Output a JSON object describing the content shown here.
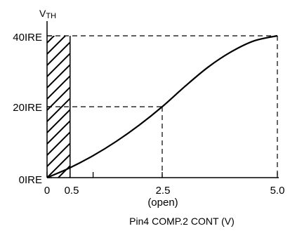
{
  "chart_data": {
    "type": "line",
    "ylabel_main": "V",
    "ylabel_sub": "TH",
    "xlabel": "Pin4 COMP.2 CONT (V)",
    "x_ticks": [
      "0",
      "0.5",
      "2.5",
      "5.0"
    ],
    "x_tick_values": [
      0,
      0.5,
      2.5,
      5.0
    ],
    "x_minor_tick_value": 1.0,
    "x_sublabel": "(open)",
    "y_ticks": [
      "0IRE",
      "20IRE",
      "40IRE"
    ],
    "y_tick_values": [
      0,
      20,
      40
    ],
    "xlim": [
      0,
      5.0
    ],
    "ylim": [
      0,
      40
    ],
    "hatched_region": [
      0,
      0.5
    ],
    "reference_points": [
      {
        "x": 2.5,
        "y": 20
      },
      {
        "x": 5.0,
        "y": 40
      }
    ],
    "series": [
      {
        "x": [
          0,
          0.5,
          1.0,
          1.5,
          2.0,
          2.5,
          3.0,
          3.5,
          4.0,
          4.5,
          5.0
        ],
        "y": [
          0,
          2.8,
          6.2,
          10.2,
          14.8,
          20.0,
          25.8,
          31.2,
          35.5,
          38.6,
          40.0
        ]
      }
    ]
  }
}
